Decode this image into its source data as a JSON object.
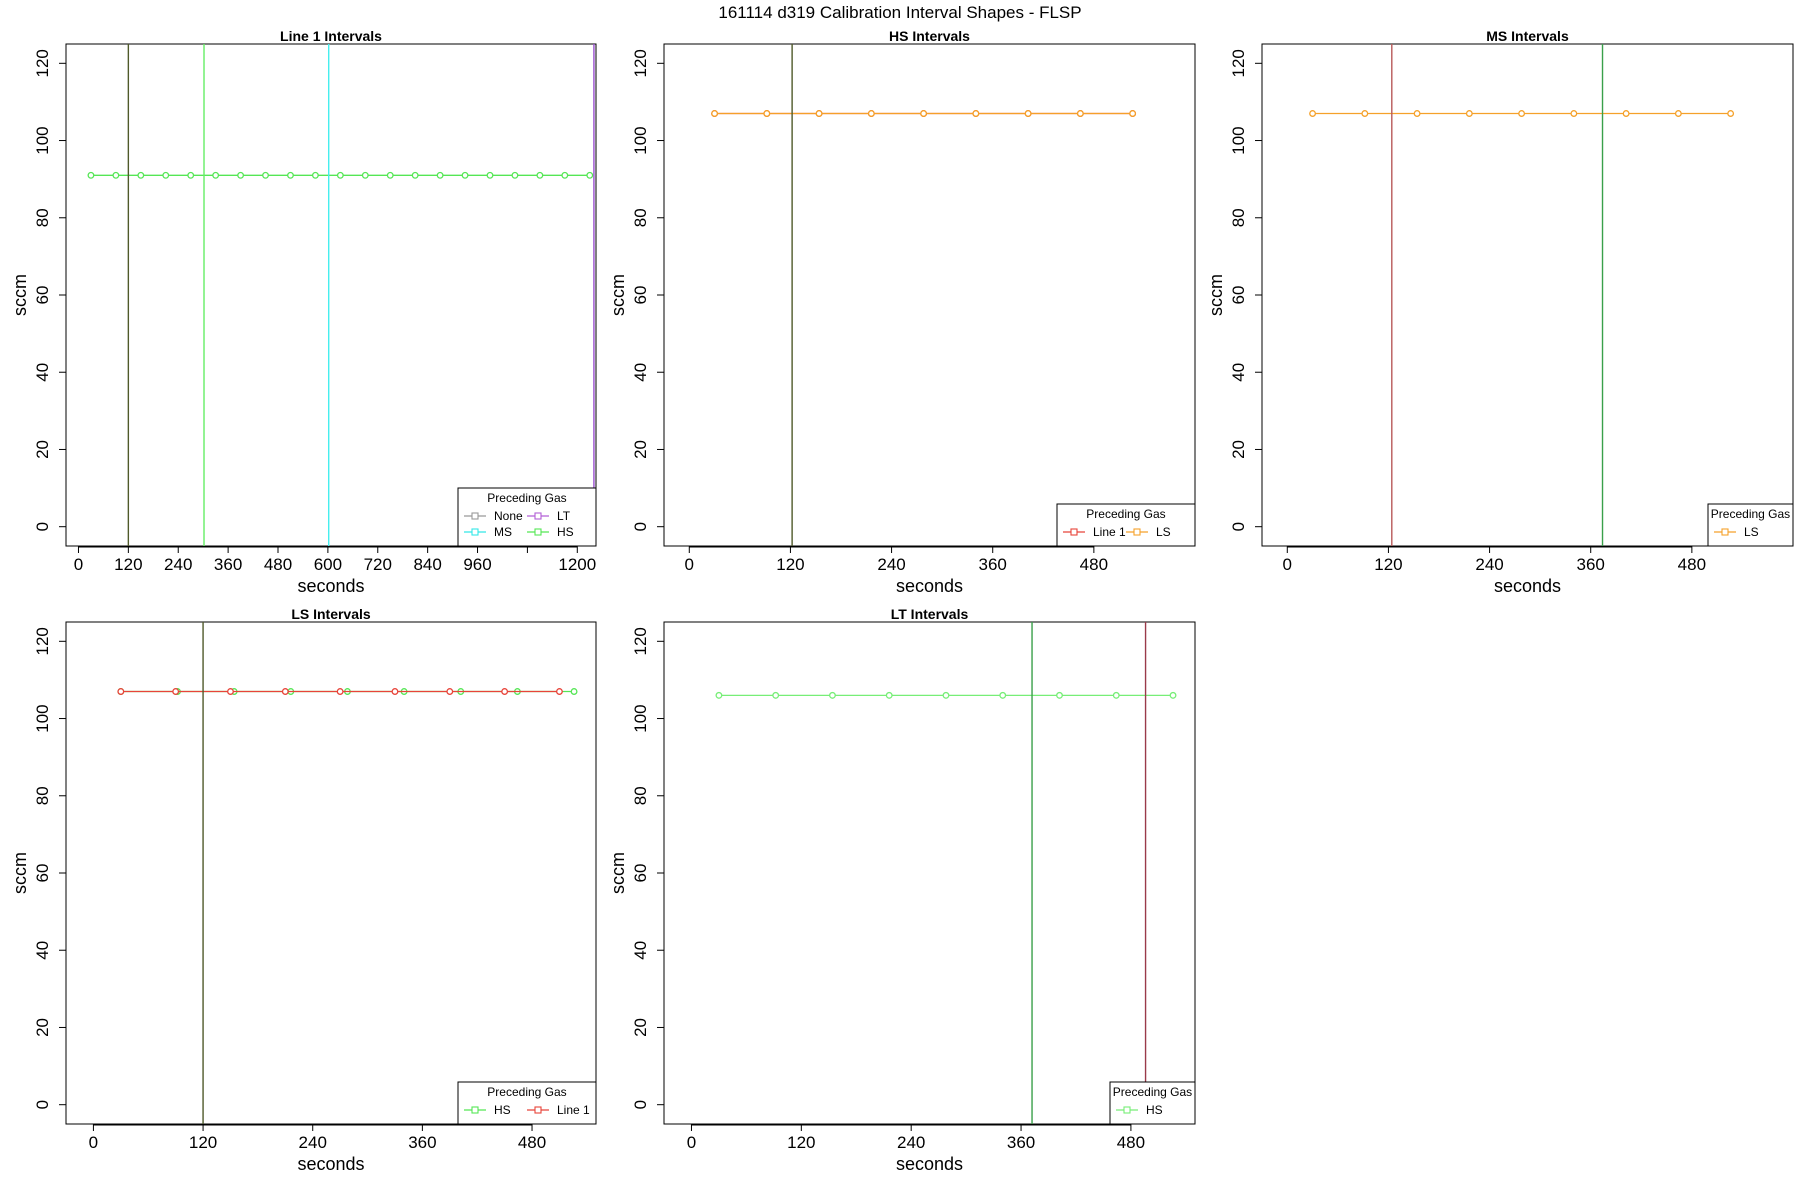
{
  "page_title": "161114   d319   Calibration Interval Shapes - FLSP",
  "chart_data": [
    {
      "type": "line",
      "title": "Line 1 Intervals",
      "xlabel": "seconds",
      "ylabel": "sccm",
      "xlim": [
        -30,
        1245
      ],
      "ylim": [
        -5,
        125
      ],
      "xticks": [
        0,
        120,
        240,
        360,
        480,
        600,
        720,
        840,
        960,
        1080,
        1200
      ],
      "xtick_labels": [
        "0",
        "120",
        "240",
        "360",
        "480",
        "600",
        "720",
        "840",
        "960",
        "",
        "1200"
      ],
      "yticks": [
        0,
        20,
        40,
        60,
        80,
        100,
        120
      ],
      "series": [
        {
          "name": "None",
          "color": "#999999",
          "x": [],
          "y": []
        },
        {
          "name": "MS",
          "color": "#33e8e8",
          "x": [],
          "y": []
        },
        {
          "name": "LT",
          "color": "#b25fd6",
          "x": [],
          "y": []
        },
        {
          "name": "HS",
          "color": "#55e655",
          "x": [
            30,
            90,
            150,
            210,
            270,
            330,
            390,
            450,
            510,
            570,
            630,
            690,
            750,
            810,
            870,
            930,
            990,
            1050,
            1110,
            1170,
            1230
          ],
          "y": [
            91,
            91,
            91,
            91,
            91,
            91,
            91,
            91,
            91,
            91,
            91,
            91,
            91,
            91,
            91,
            91,
            91,
            91,
            91,
            91,
            91
          ]
        }
      ],
      "vlines": [
        {
          "x": 120,
          "color": "#4f5a2a"
        },
        {
          "x": 302,
          "color": "#66ee66"
        },
        {
          "x": 602,
          "color": "#44eeee"
        },
        {
          "x": 1240,
          "color": "#9a4fd0"
        }
      ],
      "legend": {
        "title": "Preceding Gas",
        "position": "bottom-right",
        "columns": 2,
        "entries": [
          "None",
          "LT",
          "MS",
          "HS"
        ]
      }
    },
    {
      "type": "line",
      "title": "HS Intervals",
      "xlabel": "seconds",
      "ylabel": "sccm",
      "xlim": [
        -30,
        600
      ],
      "ylim": [
        -5,
        125
      ],
      "xticks": [
        0,
        120,
        240,
        360,
        480
      ],
      "yticks": [
        0,
        20,
        40,
        60,
        80,
        100,
        120
      ],
      "series": [
        {
          "name": "Line 1",
          "color": "#e8443a",
          "x": [
            30,
            92,
            154,
            216,
            278,
            340,
            402,
            464,
            526
          ],
          "y": [
            107,
            107,
            107,
            107,
            107,
            107,
            107,
            107,
            107
          ]
        },
        {
          "name": "LS",
          "color": "#f5a12a",
          "x": [
            30,
            92,
            154,
            216,
            278,
            340,
            402,
            464,
            526
          ],
          "y": [
            107,
            107,
            107,
            107,
            107,
            107,
            107,
            107,
            107
          ]
        }
      ],
      "vlines": [
        {
          "x": 122,
          "color": "#4f5a2a"
        }
      ],
      "legend": {
        "title": "Preceding Gas",
        "position": "bottom-right",
        "columns": 2,
        "entries": [
          "Line 1",
          "LS"
        ]
      }
    },
    {
      "type": "line",
      "title": "MS Intervals",
      "xlabel": "seconds",
      "ylabel": "sccm",
      "xlim": [
        -30,
        600
      ],
      "ylim": [
        -5,
        125
      ],
      "xticks": [
        0,
        120,
        240,
        360,
        480
      ],
      "yticks": [
        0,
        20,
        40,
        60,
        80,
        100,
        120
      ],
      "series": [
        {
          "name": "LS",
          "color": "#f5a12a",
          "x": [
            30,
            92,
            154,
            216,
            278,
            340,
            402,
            464,
            526
          ],
          "y": [
            107,
            107,
            107,
            107,
            107,
            107,
            107,
            107,
            107
          ]
        }
      ],
      "vlines": [
        {
          "x": 124,
          "color": "#b85a5a"
        },
        {
          "x": 374,
          "color": "#3aa04a"
        }
      ],
      "legend": {
        "title": "Preceding Gas",
        "position": "bottom-right",
        "columns": 1,
        "entries": [
          "LS"
        ]
      }
    },
    {
      "type": "line",
      "title": "LS Intervals",
      "xlabel": "seconds",
      "ylabel": "sccm",
      "xlim": [
        -30,
        550
      ],
      "ylim": [
        -5,
        125
      ],
      "xticks": [
        0,
        120,
        240,
        360,
        480
      ],
      "yticks": [
        0,
        20,
        40,
        60,
        80,
        100,
        120
      ],
      "series": [
        {
          "name": "HS",
          "color": "#55e655",
          "x": [
            30,
            92,
            154,
            216,
            278,
            340,
            402,
            464,
            526
          ],
          "y": [
            107,
            107,
            107,
            107,
            107,
            107,
            107,
            107,
            107
          ]
        },
        {
          "name": "Line 1",
          "color": "#e8443a",
          "x": [
            30,
            90,
            150,
            210,
            270,
            330,
            390,
            450,
            510
          ],
          "y": [
            107,
            107,
            107,
            107,
            107,
            107,
            107,
            107,
            107
          ]
        }
      ],
      "vlines": [
        {
          "x": 120,
          "color": "#4f5a2a"
        }
      ],
      "legend": {
        "title": "Preceding Gas",
        "position": "bottom-right",
        "columns": 2,
        "entries": [
          "HS",
          "Line 1"
        ]
      }
    },
    {
      "type": "line",
      "title": "LT Intervals",
      "xlabel": "seconds",
      "ylabel": "sccm",
      "xlim": [
        -30,
        550
      ],
      "ylim": [
        -5,
        125
      ],
      "xticks": [
        0,
        120,
        240,
        360,
        480
      ],
      "yticks": [
        0,
        20,
        40,
        60,
        80,
        100,
        120
      ],
      "series": [
        {
          "name": "HS",
          "color": "#77ee77",
          "x": [
            30,
            92,
            154,
            216,
            278,
            340,
            402,
            464,
            526
          ],
          "y": [
            106,
            106,
            106,
            106,
            106,
            106,
            106,
            106,
            106
          ]
        }
      ],
      "vlines": [
        {
          "x": 372,
          "color": "#3aa04a"
        },
        {
          "x": 496,
          "color": "#9a3a4a"
        }
      ],
      "legend": {
        "title": "Preceding Gas",
        "position": "bottom-right",
        "columns": 1,
        "entries": [
          "HS"
        ]
      }
    }
  ]
}
